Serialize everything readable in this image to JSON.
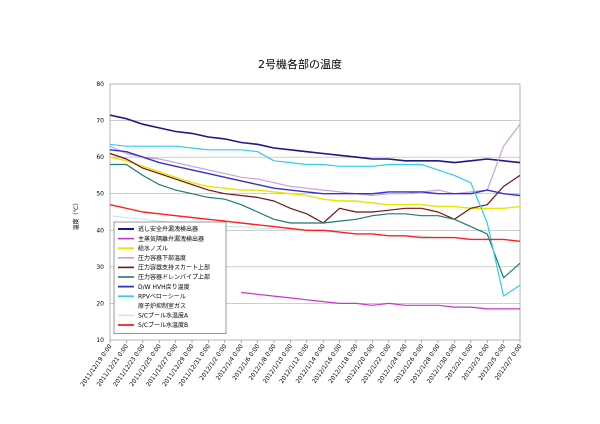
{
  "chart_data": {
    "type": "line",
    "title": "2号機各部の温度",
    "xlabel": "",
    "ylabel": "温度（℃）",
    "ylim": [
      10,
      80
    ],
    "yticks": [
      10,
      20,
      30,
      40,
      50,
      60,
      70,
      80
    ],
    "grid": true,
    "legend_position": "bottom-left",
    "x_tick_labels": [
      "2011/12/19 0:00",
      "2011/12/21 0:00",
      "2011/12/23 0:00",
      "2011/12/25 0:00",
      "2011/12/27 0:00",
      "2011/12/29 0:00",
      "2011/12/31 0:00",
      "2012/1/2 0:00",
      "2012/1/4 0:00",
      "2012/1/6 0:00",
      "2012/1/8 0:00",
      "2012/1/10 0:00",
      "2012/1/12 0:00",
      "2012/1/14 0:00",
      "2012/1/16 0:00",
      "2012/1/18 0:00",
      "2012/1/20 0:00",
      "2012/1/22 0:00",
      "2012/1/24 0:00",
      "2012/1/26 0:00",
      "2012/1/28 0:00",
      "2012/1/30 0:00",
      "2012/2/1 0:00",
      "2012/2/3 0:00",
      "2012/2/5 0:00",
      "2012/2/7 0:00"
    ],
    "series": [
      {
        "name": "逃し安全弁漏洩検出器",
        "color": "#1a1a8c",
        "width": 1.6,
        "values": [
          71.5,
          70.5,
          69,
          68,
          67,
          66.5,
          65.5,
          65,
          64,
          63.5,
          62.5,
          62,
          61.5,
          61,
          60.5,
          60,
          59.5,
          59.5,
          59,
          59,
          59,
          58.5,
          59,
          59.5,
          59,
          58.5
        ]
      },
      {
        "name": "主蒸気隔離弁漏洩検出器",
        "color": "#cc33cc",
        "width": 1.2,
        "values": [
          null,
          null,
          null,
          null,
          null,
          null,
          null,
          null,
          23,
          22.5,
          22,
          21.5,
          21,
          20.5,
          20,
          20,
          19.5,
          20,
          19.5,
          19.5,
          19.5,
          19,
          19,
          18.5,
          18.5,
          18.5
        ]
      },
      {
        "name": "給水ノズル",
        "color": "#e6e600",
        "width": 1.4,
        "values": [
          60,
          59,
          57.5,
          56,
          54.5,
          53,
          52,
          51.5,
          51,
          51,
          50.5,
          50,
          49.5,
          48.5,
          48,
          48,
          47.5,
          47,
          47,
          47,
          46.5,
          46.5,
          46,
          46,
          46,
          46.5
        ]
      },
      {
        "name": "圧力容器下部温度",
        "color": "#c9a0dc",
        "width": 1.2,
        "values": [
          63,
          61,
          60,
          59.5,
          58.5,
          57.5,
          56.5,
          55.5,
          54.5,
          54,
          53,
          52,
          51.5,
          51,
          50.5,
          50,
          49.5,
          50,
          50,
          50.5,
          51,
          50,
          50.5,
          51,
          63,
          69
        ]
      },
      {
        "name": "圧力容器支持スカート上部",
        "color": "#7a1010",
        "width": 1.2,
        "values": [
          61,
          59.5,
          57,
          55.5,
          54,
          52.5,
          51,
          50,
          49.5,
          49,
          48,
          46,
          44.5,
          42,
          46,
          45,
          45,
          45.5,
          46,
          46,
          45,
          43,
          46,
          47,
          52,
          55
        ]
      },
      {
        "name": "圧力容器ドレンパイプ上部",
        "color": "#1f7a70",
        "width": 1.2,
        "values": [
          58,
          58,
          55,
          52.5,
          51,
          50,
          49,
          48.5,
          47,
          45,
          43,
          42,
          42,
          42,
          42.5,
          43,
          44,
          44.5,
          44.5,
          44,
          44,
          43,
          41,
          39,
          27,
          31
        ]
      },
      {
        "name": "D/W HVH戻り温度",
        "color": "#3333cc",
        "width": 1.4,
        "values": [
          62,
          61.5,
          60,
          58.5,
          57.5,
          56.5,
          55.5,
          54.5,
          53.5,
          52.5,
          51.5,
          51,
          50.5,
          50,
          50,
          50,
          50,
          50.5,
          50.5,
          50.5,
          50,
          50,
          50,
          51,
          50,
          49.5
        ]
      },
      {
        "name": "RPVベローシール",
        "color": "#33ccee",
        "width": 1.2,
        "values": [
          63.5,
          63,
          63,
          63,
          63,
          62.5,
          62,
          62,
          62,
          61.5,
          59,
          58.5,
          58,
          58,
          57.5,
          57.5,
          57.5,
          58,
          58,
          58,
          56.5,
          55,
          53,
          42,
          22,
          25
        ]
      },
      {
        "name": "原子炉抑制室ガス",
        "color": "#ffffff",
        "width": 1.0,
        "values": []
      },
      {
        "name": "S/Cプール水温度A",
        "color": "#bfe8f0",
        "width": 1.0,
        "values": [
          44,
          43.5,
          43,
          42.5,
          42,
          41.5,
          41.5,
          41,
          41,
          40.5,
          40.5,
          40,
          40,
          39.5,
          39.5,
          39,
          39,
          38.5,
          38.5,
          38.5,
          38,
          38,
          37.5,
          37.5,
          37.5,
          37
        ]
      },
      {
        "name": "S/Cプール水温度B",
        "color": "#ff2020",
        "width": 1.4,
        "values": [
          47,
          46,
          45,
          44.5,
          44,
          43.5,
          43,
          42.5,
          42,
          41.5,
          41,
          40.5,
          40,
          40,
          39.5,
          39,
          39,
          38.5,
          38.5,
          38,
          38,
          38,
          37.5,
          37.5,
          37.5,
          37
        ]
      }
    ]
  }
}
